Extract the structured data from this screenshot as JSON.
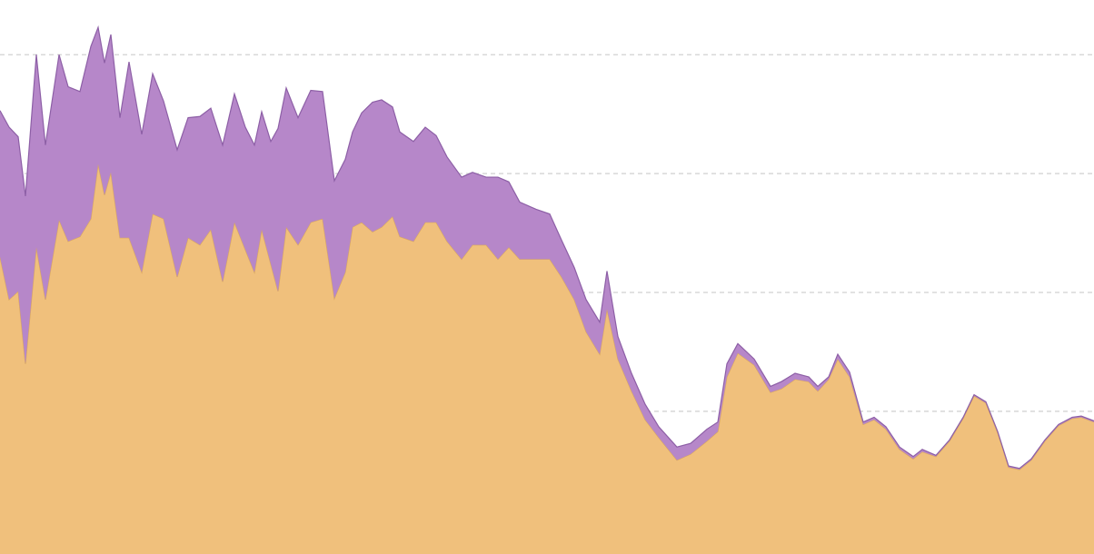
{
  "chart_data": {
    "type": "stacked_area",
    "x": [
      0,
      10,
      20,
      28,
      40,
      50,
      65,
      75,
      88,
      100,
      108,
      115,
      122,
      132,
      142,
      156,
      168,
      180,
      195,
      207,
      220,
      232,
      245,
      258,
      270,
      280,
      288,
      298,
      306,
      315,
      328,
      342,
      355,
      368,
      380,
      388,
      398,
      410,
      420,
      432,
      440,
      455,
      468,
      480,
      492,
      508,
      520,
      535,
      548,
      560,
      572,
      590,
      605,
      618,
      632,
      645,
      660,
      668,
      680,
      695,
      710,
      725,
      745,
      760,
      778,
      790,
      800,
      812,
      830,
      848,
      860,
      875,
      890,
      900,
      912,
      922,
      935,
      950,
      962,
      975,
      990,
      1005,
      1015,
      1030,
      1045,
      1060,
      1072,
      1085,
      1098,
      1110,
      1122,
      1135,
      1150,
      1165,
      1180,
      1190,
      1204
    ],
    "series": [
      {
        "color": "#f0c07c",
        "stroke": "#d9a860",
        "values": [
          25.0,
          21.4,
          22.1,
          16.0,
          25.8,
          21.4,
          28.1,
          26.3,
          26.7,
          28.2,
          32.8,
          30.2,
          32.1,
          26.6,
          26.6,
          23.7,
          28.6,
          28.2,
          23.3,
          26.6,
          26.0,
          27.3,
          22.9,
          27.9,
          25.6,
          23.7,
          27.3,
          24.4,
          22.1,
          27.5,
          26.0,
          27.9,
          28.2,
          21.5,
          23.7,
          27.5,
          27.9,
          27.1,
          27.5,
          28.4,
          26.7,
          26.3,
          27.9,
          27.9,
          26.3,
          24.8,
          26.0,
          26.0,
          24.8,
          25.8,
          24.8,
          24.8,
          24.8,
          23.3,
          21.4,
          18.7,
          16.8,
          20.6,
          16.4,
          13.7,
          11.3,
          9.8,
          7.9,
          8.4,
          9.5,
          10.3,
          14.9,
          16.9,
          15.9,
          13.6,
          13.9,
          14.7,
          14.5,
          13.7,
          14.7,
          16.4,
          14.9,
          10.9,
          11.3,
          10.5,
          8.8,
          8.0,
          8.6,
          8.2,
          9.5,
          11.4,
          13.3,
          12.7,
          10.2,
          7.3,
          7.1,
          7.9,
          9.5,
          10.8,
          11.4,
          11.5,
          11.1
        ]
      },
      {
        "color": "#b687c9",
        "stroke": "#8d5fa6",
        "values": [
          12.3,
          14.5,
          13.0,
          14.1,
          16.2,
          13.0,
          13.9,
          13.0,
          12.2,
          14.5,
          11.5,
          11.1,
          11.6,
          10.1,
          14.8,
          11.6,
          11.8,
          9.9,
          10.7,
          10.1,
          10.8,
          10.2,
          11.5,
          10.8,
          10.3,
          10.7,
          9.9,
          10.3,
          13.7,
          11.7,
          10.7,
          11.1,
          10.7,
          9.9,
          9.5,
          8.0,
          9.2,
          10.9,
          10.7,
          9.2,
          8.8,
          8.4,
          8.0,
          7.3,
          7.1,
          6.9,
          6.1,
          5.7,
          6.9,
          5.5,
          4.8,
          4.2,
          3.8,
          3.1,
          2.7,
          2.7,
          2.7,
          3.2,
          1.9,
          1.5,
          1.3,
          0.9,
          1.1,
          0.9,
          1.0,
          0.8,
          1.1,
          0.8,
          0.5,
          0.5,
          0.6,
          0.5,
          0.4,
          0.4,
          0.2,
          0.4,
          0.4,
          0.2,
          0.2,
          0.2,
          0.2,
          0.2,
          0.2,
          0.1,
          0.1,
          0.1,
          0.1,
          0.1,
          0.1,
          0.1,
          0.1,
          0.1,
          0.1,
          0.1,
          0.1,
          0.1,
          0.1
        ]
      }
    ],
    "xlim": [
      0,
      1204
    ],
    "ylim": [
      0,
      46.6
    ],
    "yticks": [
      2,
      12,
      22,
      32,
      42
    ],
    "grid": true
  }
}
